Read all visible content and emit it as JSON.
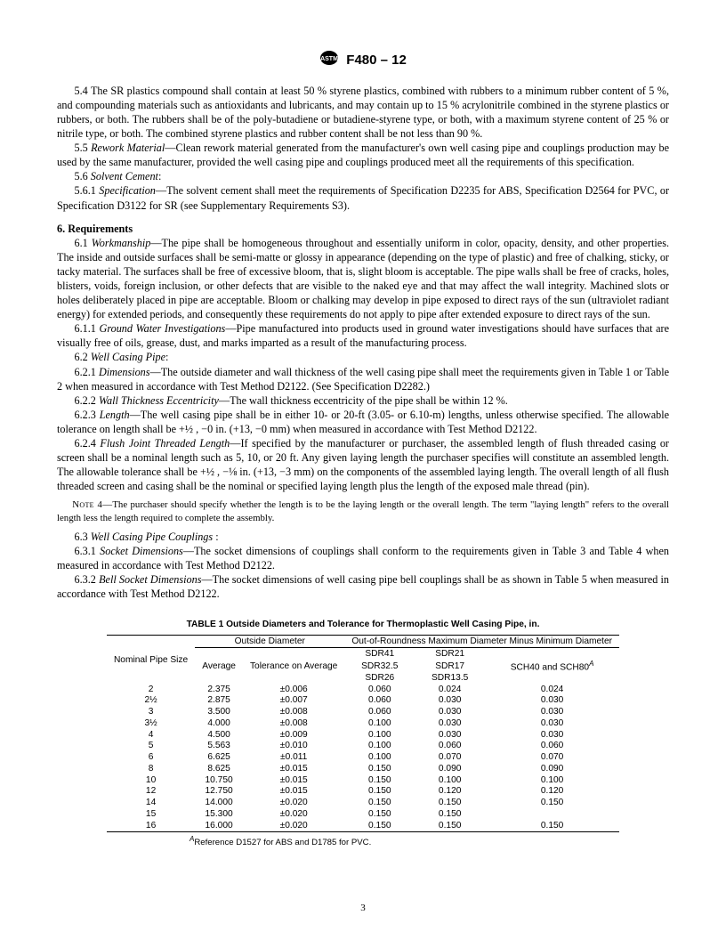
{
  "header": {
    "designation": "F480 – 12"
  },
  "paras": {
    "p54": "5.4 The SR plastics compound shall contain at least 50 % styrene plastics, combined with rubbers to a minimum rubber content of 5 %, and compounding materials such as antioxidants and lubricants, and may contain up to 15 % acrylonitrile combined in the styrene plastics or rubbers, or both. The rubbers shall be of the poly-butadiene or butadiene-styrene type, or both, with a maximum styrene content of 25 % or nitrile type, or both. The combined styrene plastics and rubber content shall be not less than 90 %.",
    "p55_lead": "5.5 ",
    "p55_head": "Rework Material",
    "p55_body": "—Clean rework material generated from the manufacturer's own well casing pipe and couplings production may be used by the same manufacturer, provided the well casing pipe and couplings produced meet all the requirements of this specification.",
    "p56": "5.6 ",
    "p56_head": "Solvent Cement",
    "p56_tail": ":",
    "p561_lead": "5.6.1 ",
    "p561_head": "Specification",
    "p561_body": "—The solvent cement shall meet the requirements of Specification D2235 for ABS, Specification D2564 for PVC, or Specification D3122 for SR (see Supplementary Requirements S3).",
    "s6": "6.  Requirements",
    "p61_lead": "6.1 ",
    "p61_head": "Workmanship",
    "p61_body": "—The pipe shall be homogeneous throughout and essentially uniform in color, opacity, density, and other properties. The inside and outside surfaces shall be semi-matte or glossy in appearance (depending on the type of plastic) and free of chalking, sticky, or tacky material. The surfaces shall be free of excessive bloom, that is, slight bloom is acceptable. The pipe walls shall be free of cracks, holes, blisters, voids, foreign inclusion, or other defects that are visible to the naked eye and that may affect the wall integrity. Machined slots or holes deliberately placed in pipe are acceptable. Bloom or chalking may develop in pipe exposed to direct rays of the sun (ultraviolet radiant energy) for extended periods, and consequently these requirements do not apply to pipe after extended exposure to direct rays of the sun.",
    "p611_lead": "6.1.1 ",
    "p611_head": "Ground Water Investigations",
    "p611_body": "—Pipe manufactured into products used in ground water investigations should have surfaces that are visually free of oils, grease, dust, and marks imparted as a result of the manufacturing process.",
    "p62_lead": "6.2 ",
    "p62_head": "Well Casing Pipe",
    "p62_tail": ":",
    "p621_lead": "6.2.1 ",
    "p621_head": "Dimensions",
    "p621_body": "—The outside diameter and wall thickness of the well casing pipe shall meet the requirements given in Table 1 or Table 2 when measured in accordance with Test Method D2122. (See Specification D2282.)",
    "p622_lead": "6.2.2 ",
    "p622_head": "Wall Thickness Eccentricity",
    "p622_body": "—The wall thickness eccentricity of the pipe shall be within 12 %.",
    "p623_lead": "6.2.3 ",
    "p623_head": "Length",
    "p623_body": "—The well casing pipe shall be in either 10- or 20-ft (3.05- or 6.10-m) lengths, unless otherwise specified. The allowable tolerance on length shall be +½ , −0 in. (+13, −0 mm) when measured in accordance with Test Method D2122.",
    "p624_lead": "6.2.4 ",
    "p624_head": "Flush Joint Threaded Length",
    "p624_body": "—If specified by the manufacturer or purchaser, the assembled length of flush threaded casing or screen shall be a nominal length such as 5, 10, or 20 ft. Any given laying length the purchaser specifies will constitute an assembled length. The allowable tolerance shall be +½ , −⅛ in. (+13, −3 mm) on the components of the assembled laying length. The overall length of all flush threaded screen and casing shall be the nominal or specified laying length plus the length of the exposed male thread (pin).",
    "note4_lead": "Note 4—",
    "note4_body": "The purchaser should specify whether the length is to be the laying length or the overall length. The term \"laying length\" refers to the overall length less the length required to complete the assembly.",
    "p63_lead": "6.3 ",
    "p63_head": "Well Casing Pipe Couplings",
    "p63_tail": " :",
    "p631_lead": "6.3.1 ",
    "p631_head": "Socket Dimensions",
    "p631_body": "—The socket dimensions of couplings shall conform to the requirements given in Table 3 and Table 4 when measured in accordance with Test Method D2122.",
    "p632_lead": "6.3.2 ",
    "p632_head": "Bell Socket Dimensions",
    "p632_body": "—The socket dimensions of well casing pipe bell couplings shall be as shown in Table 5 when measured in accordance with Test Method D2122."
  },
  "table1": {
    "title": "TABLE 1   Outside Diameters and Tolerance for Thermoplastic Well Casing Pipe, in.",
    "head": {
      "nps": "Nominal Pipe Size",
      "od": "Outside Diameter",
      "oor": "Out-of-Roundness Maximum Diameter Minus Minimum Diameter",
      "avg": "Average",
      "tol": "Tolerance on Average",
      "c1a": "SDR41",
      "c1b": "SDR32.5",
      "c1c": "SDR26",
      "c2a": "SDR21",
      "c2b": "SDR17",
      "c2c": "SDR13.5",
      "c3": "SCH40 and SCH80",
      "c3_sup": "A"
    },
    "rows": [
      [
        "2",
        "2.375",
        "±0.006",
        "0.060",
        "0.024",
        "0.024"
      ],
      [
        "2½",
        "2.875",
        "±0.007",
        "0.060",
        "0.030",
        "0.030"
      ],
      [
        "3",
        "3.500",
        "±0.008",
        "0.060",
        "0.030",
        "0.030"
      ],
      [
        "3½",
        "4.000",
        "±0.008",
        "0.100",
        "0.030",
        "0.030"
      ],
      [
        "4",
        "4.500",
        "±0.009",
        "0.100",
        "0.030",
        "0.030"
      ],
      [
        "5",
        "5.563",
        "±0.010",
        "0.100",
        "0.060",
        "0.060"
      ],
      [
        "6",
        "6.625",
        "±0.011",
        "0.100",
        "0.070",
        "0.070"
      ],
      [
        "8",
        "8.625",
        "±0.015",
        "0.150",
        "0.090",
        "0.090"
      ],
      [
        "10",
        "10.750",
        "±0.015",
        "0.150",
        "0.100",
        "0.100"
      ],
      [
        "12",
        "12.750",
        "±0.015",
        "0.150",
        "0.120",
        "0.120"
      ],
      [
        "14",
        "14.000",
        "±0.020",
        "0.150",
        "0.150",
        "0.150"
      ],
      [
        "15",
        "15.300",
        "±0.020",
        "0.150",
        "0.150",
        ""
      ],
      [
        "16",
        "16.000",
        "±0.020",
        "0.150",
        "0.150",
        "0.150"
      ]
    ],
    "footnote_sup": "A",
    "footnote": "Reference D1527 for ABS and D1785 for PVC."
  },
  "page_num": "3"
}
